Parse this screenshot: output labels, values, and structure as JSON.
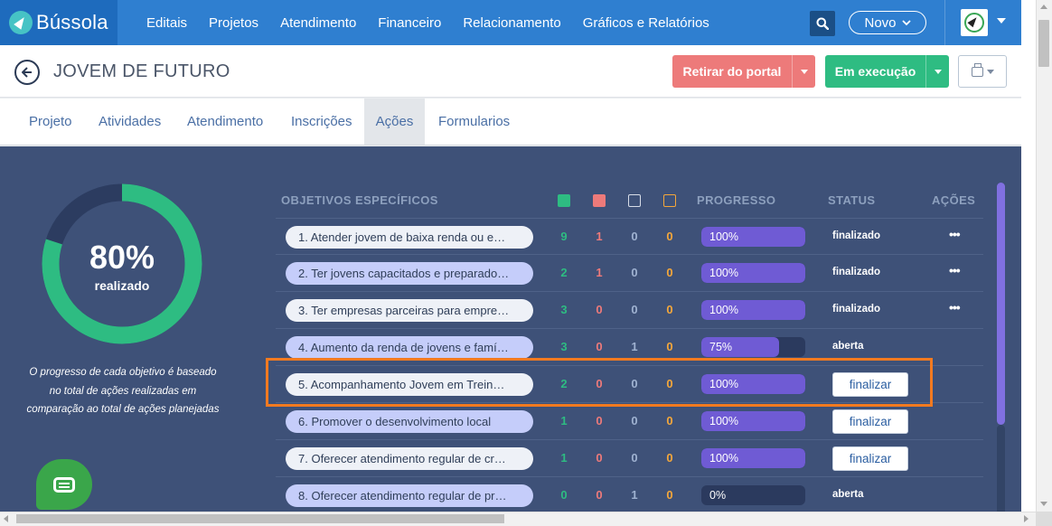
{
  "brand": {
    "name": "Bússola"
  },
  "nav": {
    "items": [
      "Editais",
      "Projetos",
      "Atendimento",
      "Financeiro",
      "Relacionamento",
      "Gráficos e Relatórios"
    ],
    "new_label": "Novo"
  },
  "header": {
    "title": "JOVEM DE FUTURO",
    "withdraw_label": "Retirar do portal",
    "status_label": "Em execução"
  },
  "tabs": [
    "Projeto",
    "Atividades",
    "Atendimento",
    "Inscrições",
    "Ações",
    "Formularios"
  ],
  "active_tab": "Ações",
  "summary": {
    "percent_label": "80%",
    "percent_value": 80,
    "caption": "realizado",
    "note_lines": [
      "O progresso de cada objetivo é baseado",
      "no total de ações realizadas em",
      "comparação ao total de ações planejadas"
    ]
  },
  "table": {
    "headers": {
      "objective": "OBJETIVOS ESPECÍFICOS",
      "progress": "PROGRESSO",
      "status": "STATUS",
      "actions": "AÇÕES"
    },
    "legend_colors": {
      "done": "#2ebc82",
      "late": "#ed7a7a",
      "pending": "#ffffff",
      "in_progress": "#f4a73a"
    },
    "rows": [
      {
        "objective": "1. Atender jovem de baixa renda ou e…",
        "done": "9",
        "late": "1",
        "pending": "0",
        "in_progress": "0",
        "progress_label": "100%",
        "progress": 100,
        "status": "finalizado",
        "action": "more"
      },
      {
        "objective": "2. Ter jovens capacitados e preparado…",
        "done": "2",
        "late": "1",
        "pending": "0",
        "in_progress": "0",
        "progress_label": "100%",
        "progress": 100,
        "status": "finalizado",
        "action": "more"
      },
      {
        "objective": "3. Ter empresas parceiras para empre…",
        "done": "3",
        "late": "0",
        "pending": "0",
        "in_progress": "0",
        "progress_label": "100%",
        "progress": 100,
        "status": "finalizado",
        "action": "more"
      },
      {
        "objective": "4. Aumento da renda de jovens e famí…",
        "done": "3",
        "late": "0",
        "pending": "1",
        "in_progress": "0",
        "progress_label": "75%",
        "progress": 75,
        "status": "aberta",
        "action": "none"
      },
      {
        "objective": "5. Acompanhamento Jovem em Trein…",
        "done": "2",
        "late": "0",
        "pending": "0",
        "in_progress": "0",
        "progress_label": "100%",
        "progress": 100,
        "status": "finalizar",
        "action": "button"
      },
      {
        "objective": "6. Promover o desenvolvimento local",
        "done": "1",
        "late": "0",
        "pending": "0",
        "in_progress": "0",
        "progress_label": "100%",
        "progress": 100,
        "status": "finalizar",
        "action": "button"
      },
      {
        "objective": "7. Oferecer atendimento regular de cr…",
        "done": "1",
        "late": "0",
        "pending": "0",
        "in_progress": "0",
        "progress_label": "100%",
        "progress": 100,
        "status": "finalizar",
        "action": "button"
      },
      {
        "objective": "8. Oferecer atendimento regular de pr…",
        "done": "0",
        "late": "0",
        "pending": "1",
        "in_progress": "0",
        "progress_label": "0%",
        "progress": 0,
        "status": "aberta",
        "action": "none"
      }
    ]
  },
  "colors": {
    "nav": "#2f7fd0",
    "panel": "#3e5178",
    "ring": "#2ebc82",
    "progress": "#6f5bd4",
    "highlight": "#f27a20"
  }
}
